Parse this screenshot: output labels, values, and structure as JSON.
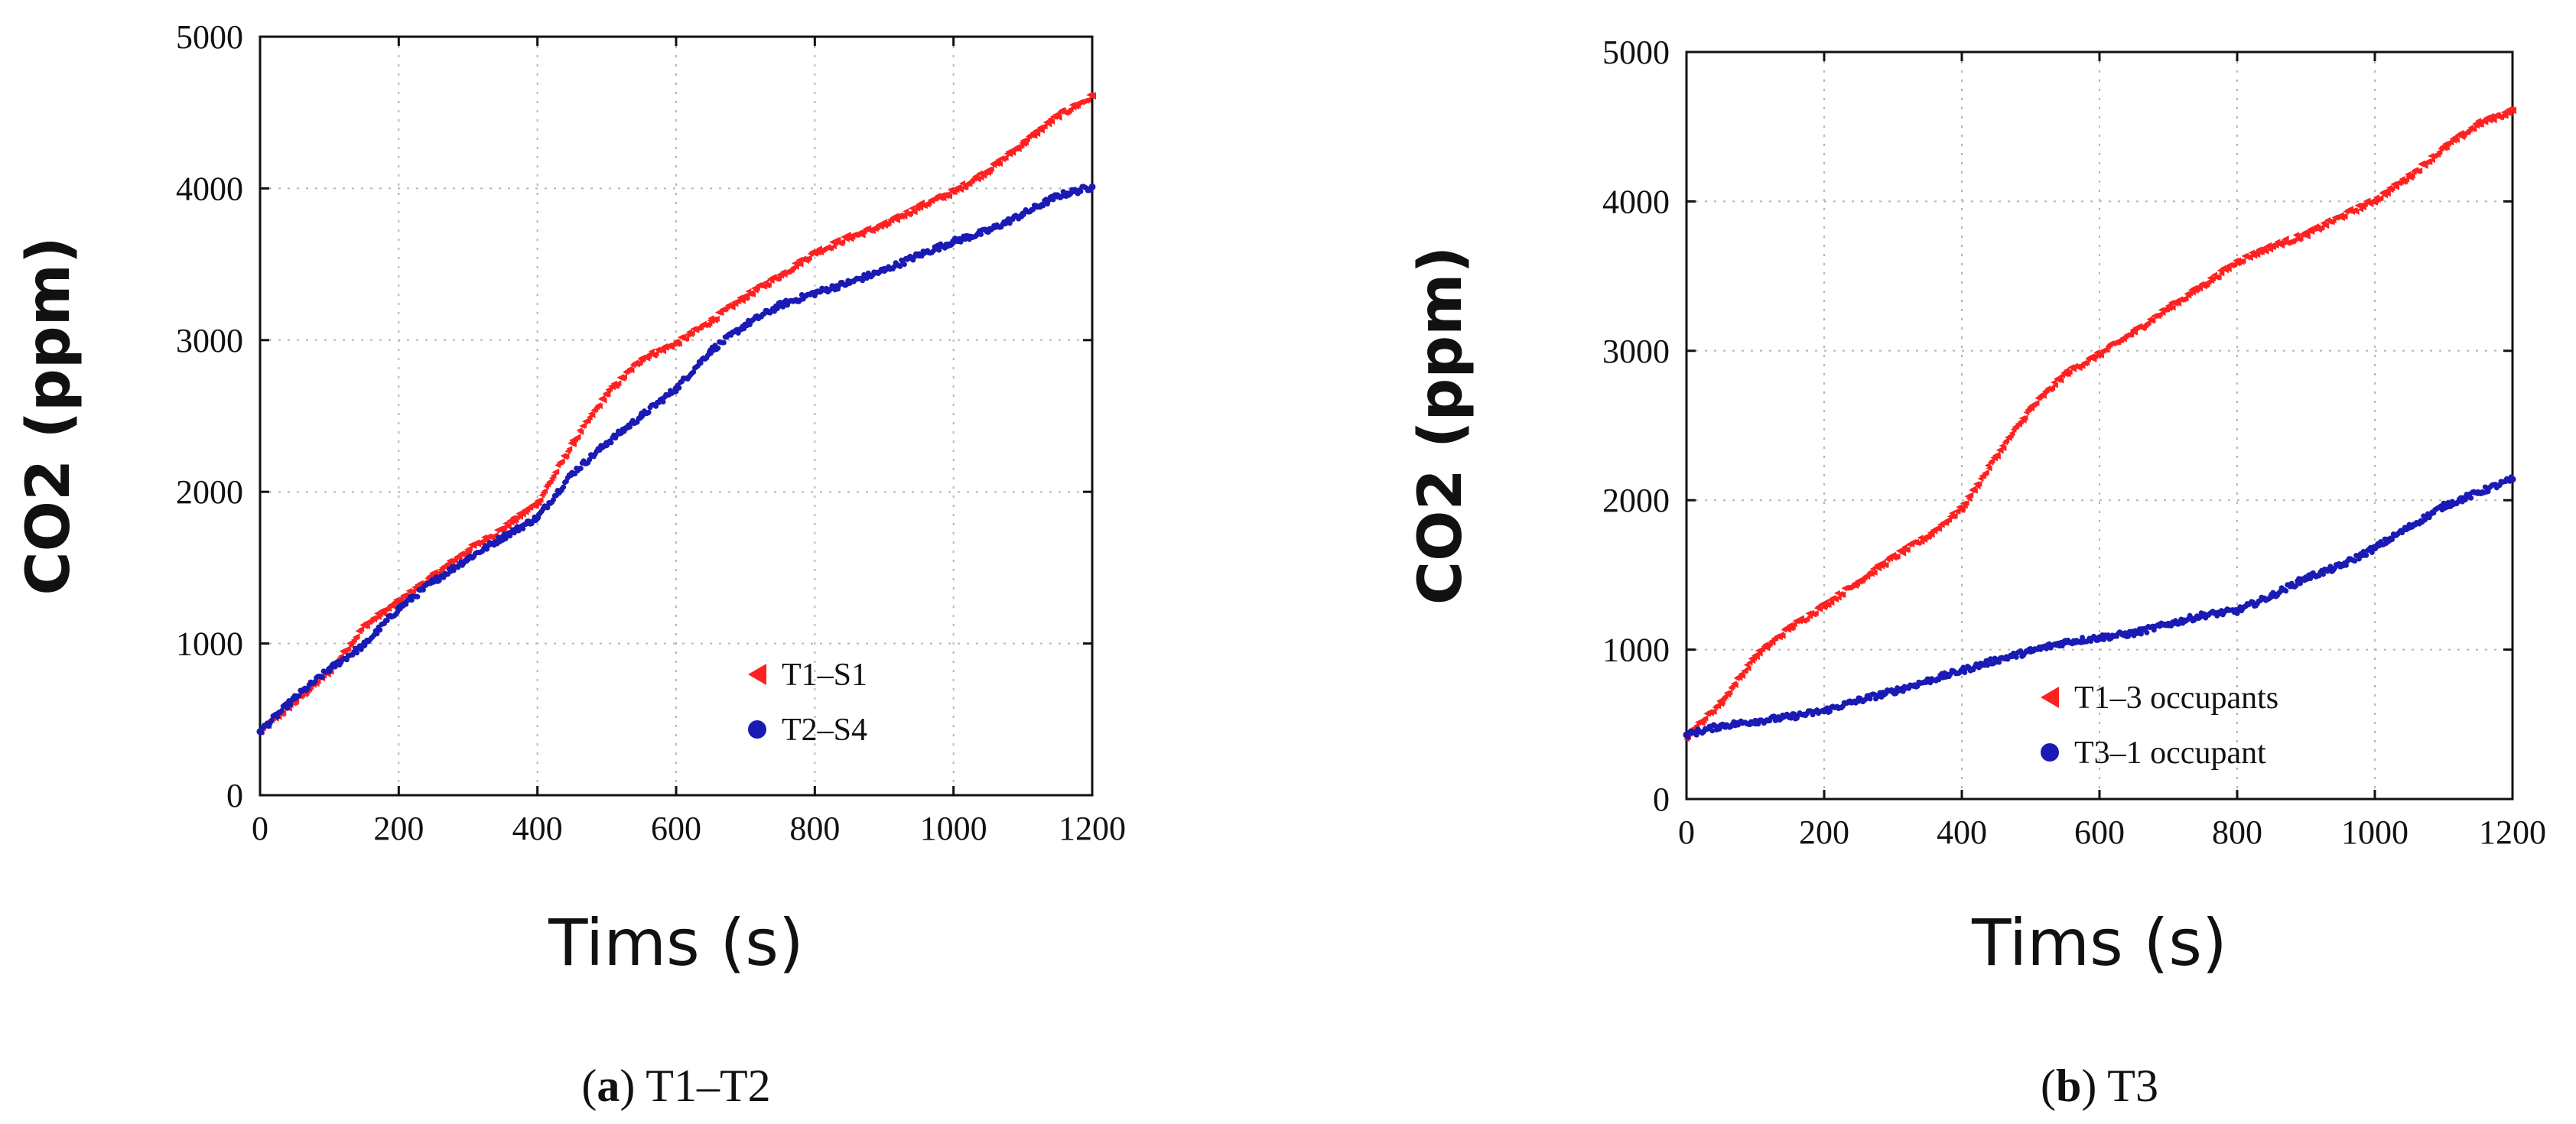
{
  "chart_data": [
    {
      "type": "scatter",
      "id": "panel-a",
      "xlabel": "Tims (s)",
      "ylabel": "CO2 (ppm)",
      "xlim": [
        0,
        1200
      ],
      "ylim": [
        0,
        5000
      ],
      "xticks": [
        "0",
        "200",
        "400",
        "600",
        "800",
        "1000",
        "1200"
      ],
      "yticks": [
        "0",
        "1000",
        "2000",
        "3000",
        "4000",
        "5000"
      ],
      "grid": true,
      "legend_position": "bottom-right",
      "caption_letter": "a",
      "caption_text": " T1–T2",
      "series": [
        {
          "name": "T1–S1",
          "color": "#ff2020",
          "marker": "left-triangle",
          "x": [
            0,
            50,
            100,
            150,
            200,
            250,
            300,
            350,
            400,
            450,
            500,
            550,
            600,
            650,
            700,
            750,
            800,
            850,
            900,
            950,
            1000,
            1050,
            1100,
            1150,
            1200
          ],
          "y": [
            420,
            620,
            820,
            1120,
            1280,
            1450,
            1620,
            1760,
            1930,
            2320,
            2650,
            2880,
            2980,
            3130,
            3290,
            3430,
            3580,
            3680,
            3760,
            3880,
            3980,
            4120,
            4300,
            4480,
            4610
          ]
        },
        {
          "name": "T2–S4",
          "color": "#1a1ab4",
          "marker": "circle",
          "x": [
            0,
            50,
            100,
            150,
            200,
            250,
            300,
            350,
            400,
            450,
            500,
            550,
            600,
            650,
            700,
            750,
            800,
            850,
            900,
            950,
            1000,
            1050,
            1100,
            1150,
            1200
          ],
          "y": [
            420,
            640,
            830,
            990,
            1230,
            1410,
            1560,
            1700,
            1830,
            2120,
            2320,
            2500,
            2680,
            2930,
            3100,
            3230,
            3310,
            3380,
            3460,
            3560,
            3650,
            3720,
            3830,
            3950,
            4010
          ]
        }
      ]
    },
    {
      "type": "scatter",
      "id": "panel-b",
      "xlabel": "Tims (s)",
      "ylabel": "CO2 (ppm)",
      "xlim": [
        0,
        1200
      ],
      "ylim": [
        0,
        5000
      ],
      "xticks": [
        "0",
        "200",
        "400",
        "600",
        "800",
        "1000",
        "1200"
      ],
      "yticks": [
        "0",
        "1000",
        "2000",
        "3000",
        "4000",
        "5000"
      ],
      "grid": true,
      "legend_position": "bottom-right",
      "caption_letter": "b",
      "caption_text": " T3",
      "series": [
        {
          "name": "T1–3 occupants",
          "color": "#ff2020",
          "marker": "left-triangle",
          "x": [
            0,
            50,
            100,
            150,
            200,
            250,
            300,
            350,
            400,
            450,
            500,
            550,
            600,
            650,
            700,
            750,
            800,
            850,
            900,
            950,
            1000,
            1050,
            1100,
            1150,
            1200
          ],
          "y": [
            420,
            650,
            960,
            1150,
            1300,
            1460,
            1620,
            1760,
            1950,
            2300,
            2620,
            2850,
            2980,
            3130,
            3290,
            3440,
            3600,
            3700,
            3780,
            3900,
            4010,
            4170,
            4360,
            4520,
            4610
          ]
        },
        {
          "name": "T3–1 occupant",
          "color": "#1a1ab4",
          "marker": "circle",
          "x": [
            0,
            50,
            100,
            150,
            200,
            250,
            300,
            350,
            400,
            450,
            500,
            550,
            600,
            650,
            700,
            750,
            800,
            850,
            900,
            950,
            1000,
            1050,
            1100,
            1150,
            1200
          ],
          "y": [
            430,
            490,
            520,
            550,
            590,
            660,
            720,
            790,
            860,
            930,
            990,
            1050,
            1080,
            1110,
            1170,
            1230,
            1260,
            1360,
            1480,
            1560,
            1680,
            1820,
            1960,
            2050,
            2140
          ]
        }
      ]
    }
  ]
}
